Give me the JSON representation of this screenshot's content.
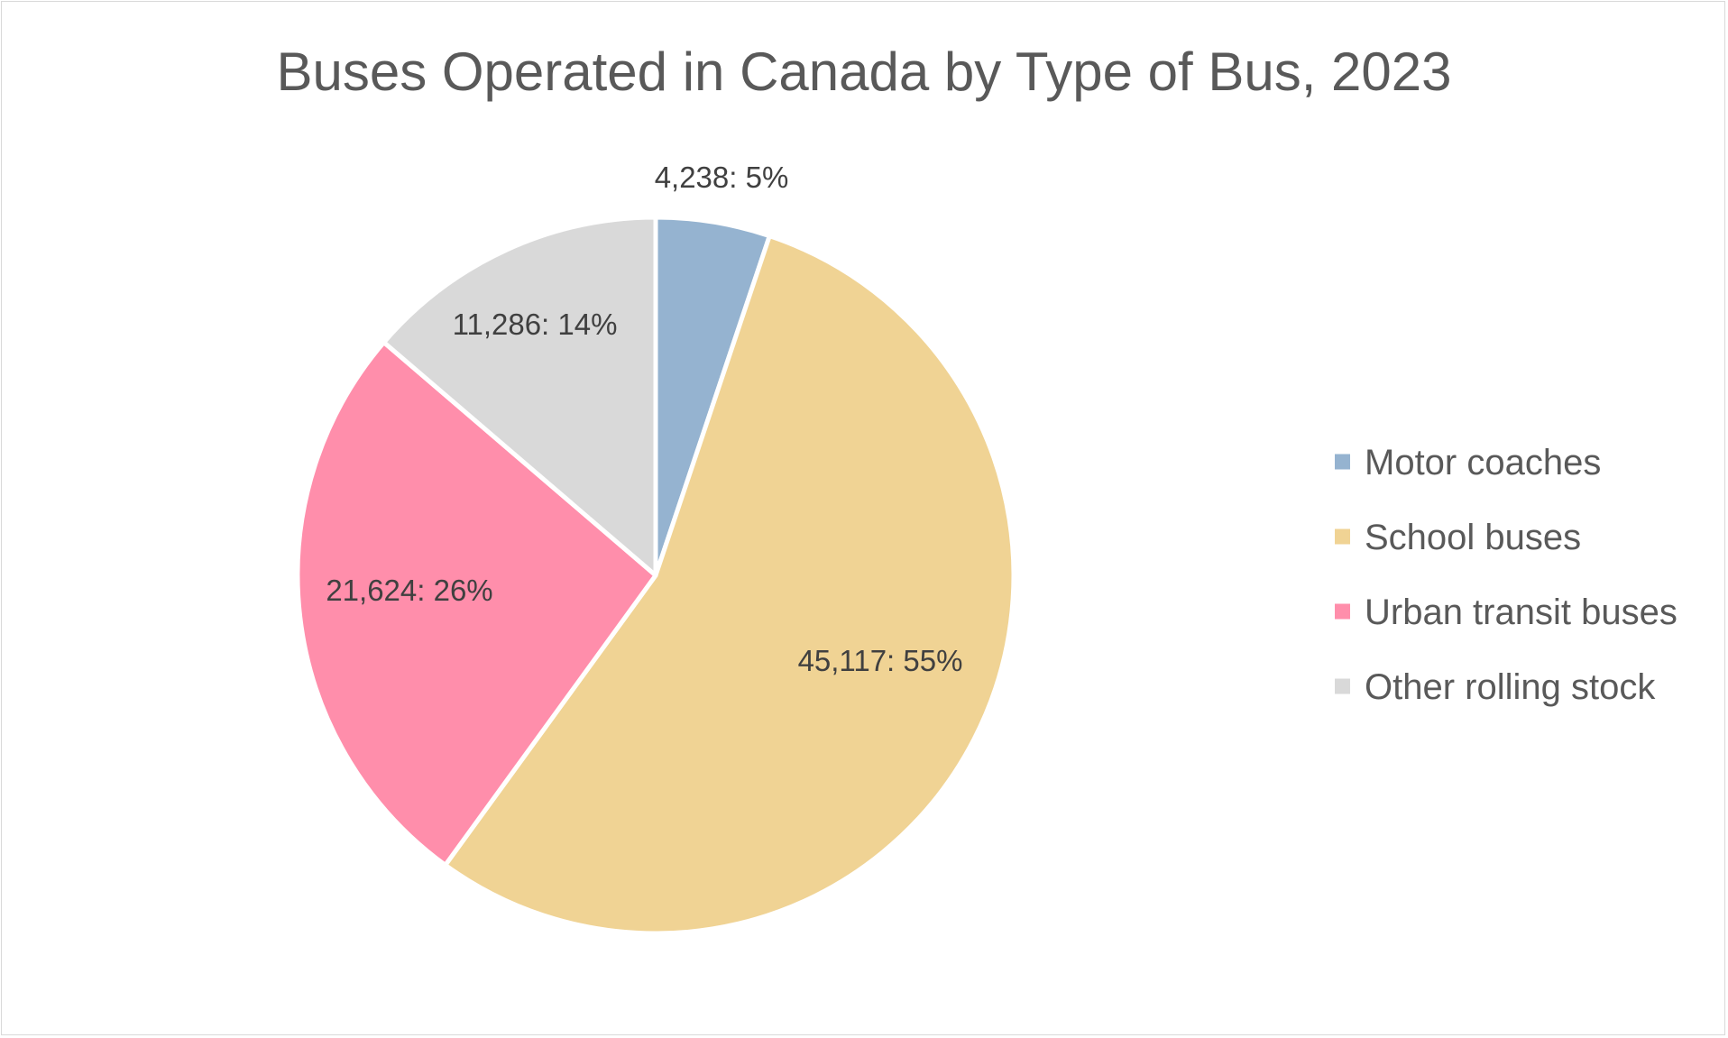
{
  "chart_data": {
    "type": "pie",
    "title": "Buses Operated in Canada by Type of Bus, 2023",
    "slices": [
      {
        "name": "Motor coaches",
        "value": 4238,
        "percent": "5%",
        "label": "4,238: 5%",
        "color": "#95b3d0"
      },
      {
        "name": "School buses",
        "value": 45117,
        "percent": "55%",
        "label": "45,117: 55%",
        "color": "#f0d394"
      },
      {
        "name": "Urban transit buses",
        "value": 21624,
        "percent": "26%",
        "label": "21,624: 26%",
        "color": "#ff8eab"
      },
      {
        "name": "Other rolling stock",
        "value": 11286,
        "percent": "14%",
        "label": "11,286: 14%",
        "color": "#d9d9d9"
      }
    ],
    "start_angle": "12 o'clock",
    "direction": "clockwise",
    "legend_position": "right",
    "slice_border_color": "#ffffff"
  }
}
